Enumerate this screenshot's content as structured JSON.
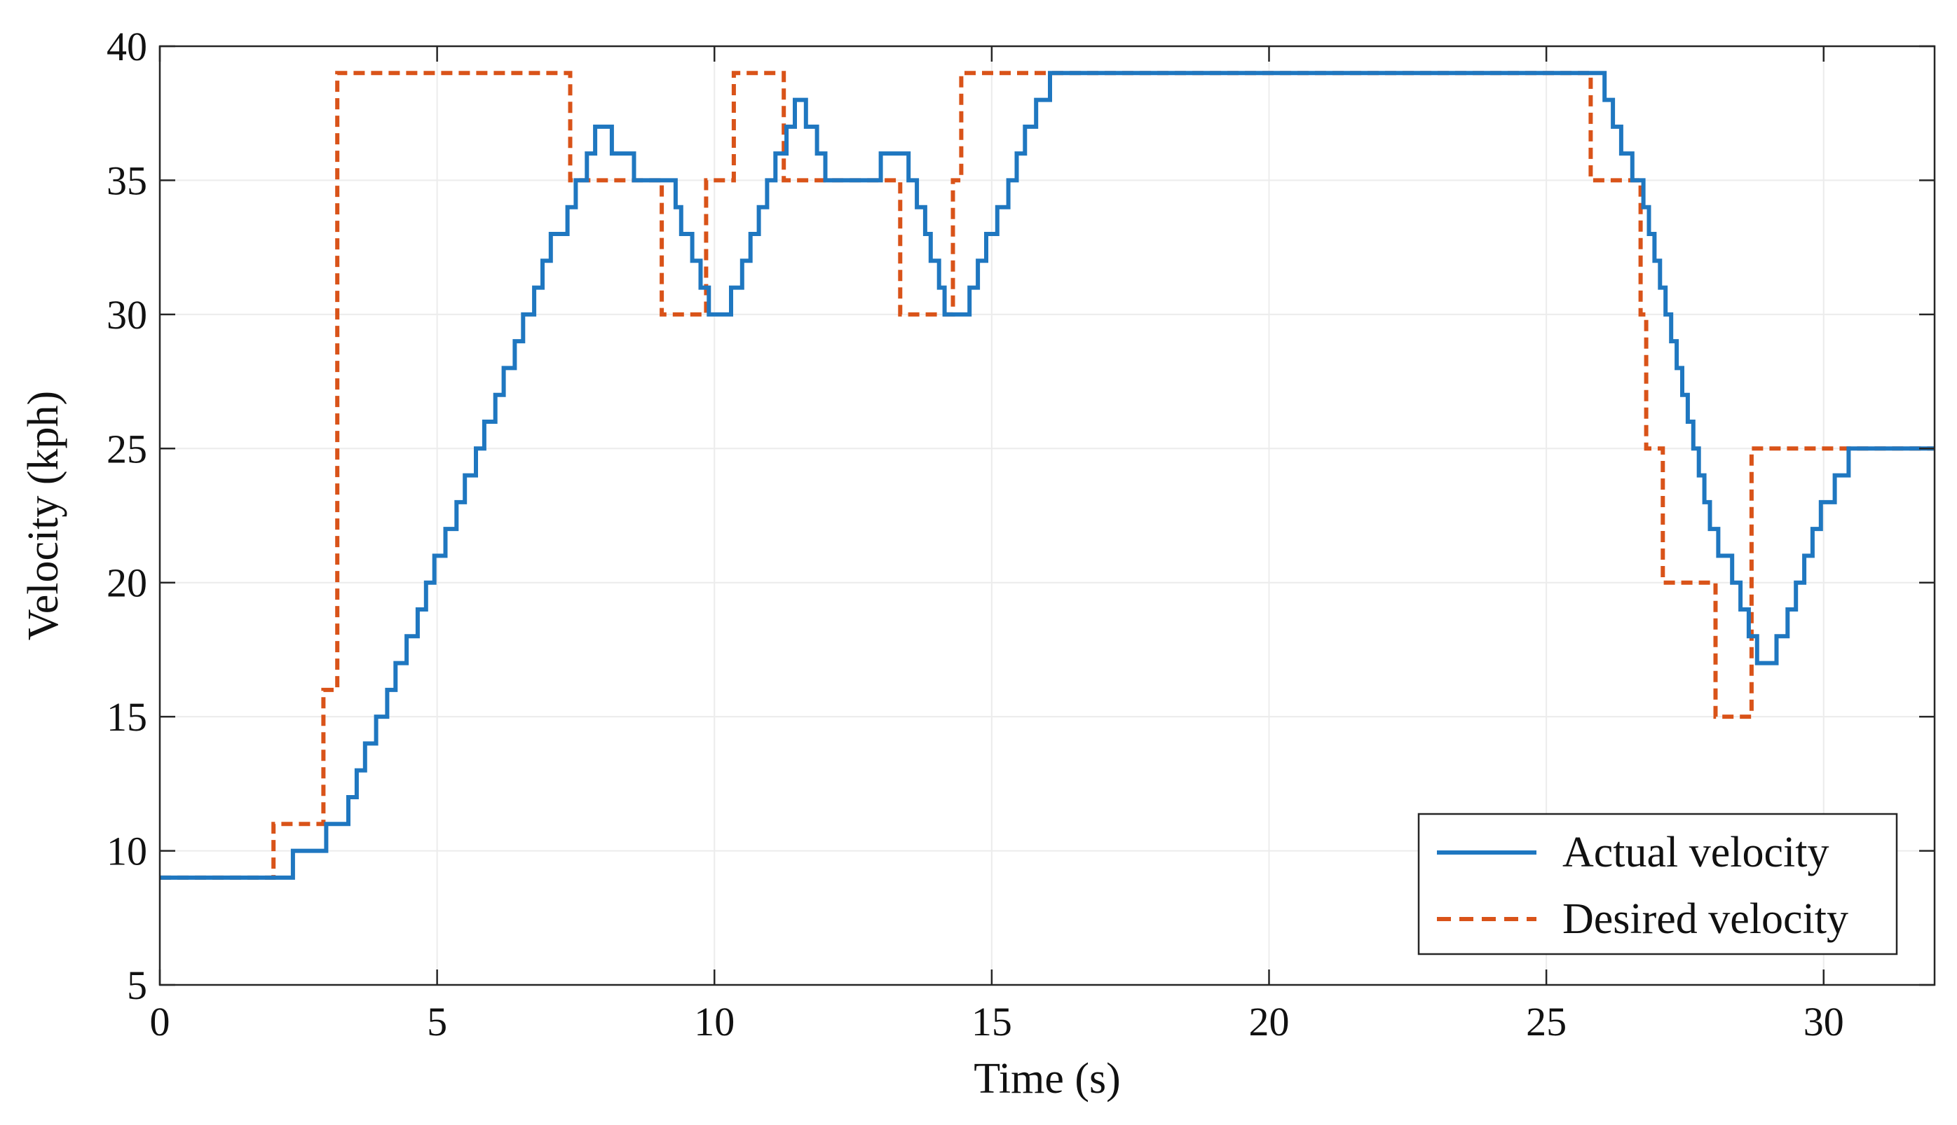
{
  "chart_data": {
    "type": "line",
    "xlabel": "Time (s)",
    "ylabel": "Velocity (kph)",
    "xlim": [
      0,
      32
    ],
    "ylim": [
      5,
      40
    ],
    "xticks": [
      0,
      5,
      10,
      15,
      20,
      25,
      30
    ],
    "yticks": [
      5,
      10,
      15,
      20,
      25,
      30,
      35,
      40
    ],
    "xtick_labels": [
      "0",
      "5",
      "10",
      "15",
      "20",
      "25",
      "30"
    ],
    "ytick_labels": [
      "5",
      "10",
      "15",
      "20",
      "25",
      "30",
      "35",
      "40"
    ],
    "grid": true,
    "legend_position": "bottom-right",
    "series": [
      {
        "name": "Actual velocity",
        "color": "#1f77c0",
        "line_style": "solid",
        "step": true,
        "points": [
          [
            0,
            9
          ],
          [
            2.4,
            10
          ],
          [
            3.0,
            11
          ],
          [
            3.4,
            12
          ],
          [
            3.55,
            13
          ],
          [
            3.7,
            14
          ],
          [
            3.9,
            15
          ],
          [
            4.1,
            16
          ],
          [
            4.25,
            17
          ],
          [
            4.45,
            18
          ],
          [
            4.65,
            19
          ],
          [
            4.8,
            20
          ],
          [
            4.95,
            21
          ],
          [
            5.15,
            22
          ],
          [
            5.35,
            23
          ],
          [
            5.5,
            24
          ],
          [
            5.7,
            25
          ],
          [
            5.85,
            26
          ],
          [
            6.05,
            27
          ],
          [
            6.2,
            28
          ],
          [
            6.4,
            29
          ],
          [
            6.55,
            30
          ],
          [
            6.75,
            31
          ],
          [
            6.9,
            32
          ],
          [
            7.05,
            33
          ],
          [
            7.35,
            34
          ],
          [
            7.5,
            35
          ],
          [
            7.7,
            36
          ],
          [
            7.85,
            37
          ],
          [
            8.1,
            37
          ],
          [
            8.15,
            36
          ],
          [
            8.55,
            35
          ],
          [
            9.3,
            34
          ],
          [
            9.4,
            33
          ],
          [
            9.6,
            32
          ],
          [
            9.75,
            31
          ],
          [
            9.9,
            30
          ],
          [
            10.3,
            31
          ],
          [
            10.5,
            32
          ],
          [
            10.65,
            33
          ],
          [
            10.8,
            34
          ],
          [
            10.95,
            35
          ],
          [
            11.1,
            36
          ],
          [
            11.3,
            37
          ],
          [
            11.45,
            38
          ],
          [
            11.65,
            37
          ],
          [
            11.85,
            36
          ],
          [
            12.0,
            35
          ],
          [
            13.0,
            36
          ],
          [
            13.5,
            35
          ],
          [
            13.65,
            34
          ],
          [
            13.8,
            33
          ],
          [
            13.9,
            32
          ],
          [
            14.05,
            31
          ],
          [
            14.15,
            30
          ],
          [
            14.6,
            31
          ],
          [
            14.75,
            32
          ],
          [
            14.9,
            33
          ],
          [
            15.1,
            34
          ],
          [
            15.3,
            35
          ],
          [
            15.45,
            36
          ],
          [
            15.6,
            37
          ],
          [
            15.8,
            38
          ],
          [
            16.05,
            39
          ],
          [
            25.9,
            39
          ],
          [
            26.05,
            38
          ],
          [
            26.2,
            37
          ],
          [
            26.35,
            36
          ],
          [
            26.55,
            35
          ],
          [
            26.75,
            34
          ],
          [
            26.85,
            33
          ],
          [
            26.95,
            32
          ],
          [
            27.05,
            31
          ],
          [
            27.15,
            30
          ],
          [
            27.25,
            29
          ],
          [
            27.35,
            28
          ],
          [
            27.45,
            27
          ],
          [
            27.55,
            26
          ],
          [
            27.65,
            25
          ],
          [
            27.75,
            24
          ],
          [
            27.85,
            23
          ],
          [
            27.95,
            22
          ],
          [
            28.1,
            21
          ],
          [
            28.35,
            20
          ],
          [
            28.5,
            19
          ],
          [
            28.65,
            18
          ],
          [
            28.8,
            17
          ],
          [
            29.15,
            18
          ],
          [
            29.35,
            19
          ],
          [
            29.5,
            20
          ],
          [
            29.65,
            21
          ],
          [
            29.8,
            22
          ],
          [
            29.95,
            23
          ],
          [
            30.2,
            24
          ],
          [
            30.45,
            25
          ],
          [
            32,
            25
          ]
        ]
      },
      {
        "name": "Desired velocity",
        "color": "#d95319",
        "line_style": "dashed",
        "step": true,
        "points": [
          [
            0,
            9
          ],
          [
            2.05,
            11
          ],
          [
            2.95,
            16
          ],
          [
            3.2,
            39
          ],
          [
            7.4,
            35
          ],
          [
            9.05,
            30
          ],
          [
            9.85,
            35
          ],
          [
            10.35,
            39
          ],
          [
            11.25,
            35
          ],
          [
            13.35,
            30
          ],
          [
            14.3,
            35
          ],
          [
            14.45,
            39
          ],
          [
            25.8,
            35
          ],
          [
            26.7,
            30
          ],
          [
            26.8,
            25
          ],
          [
            27.1,
            20
          ],
          [
            28.05,
            15
          ],
          [
            28.7,
            25
          ],
          [
            32,
            25
          ]
        ]
      }
    ]
  }
}
